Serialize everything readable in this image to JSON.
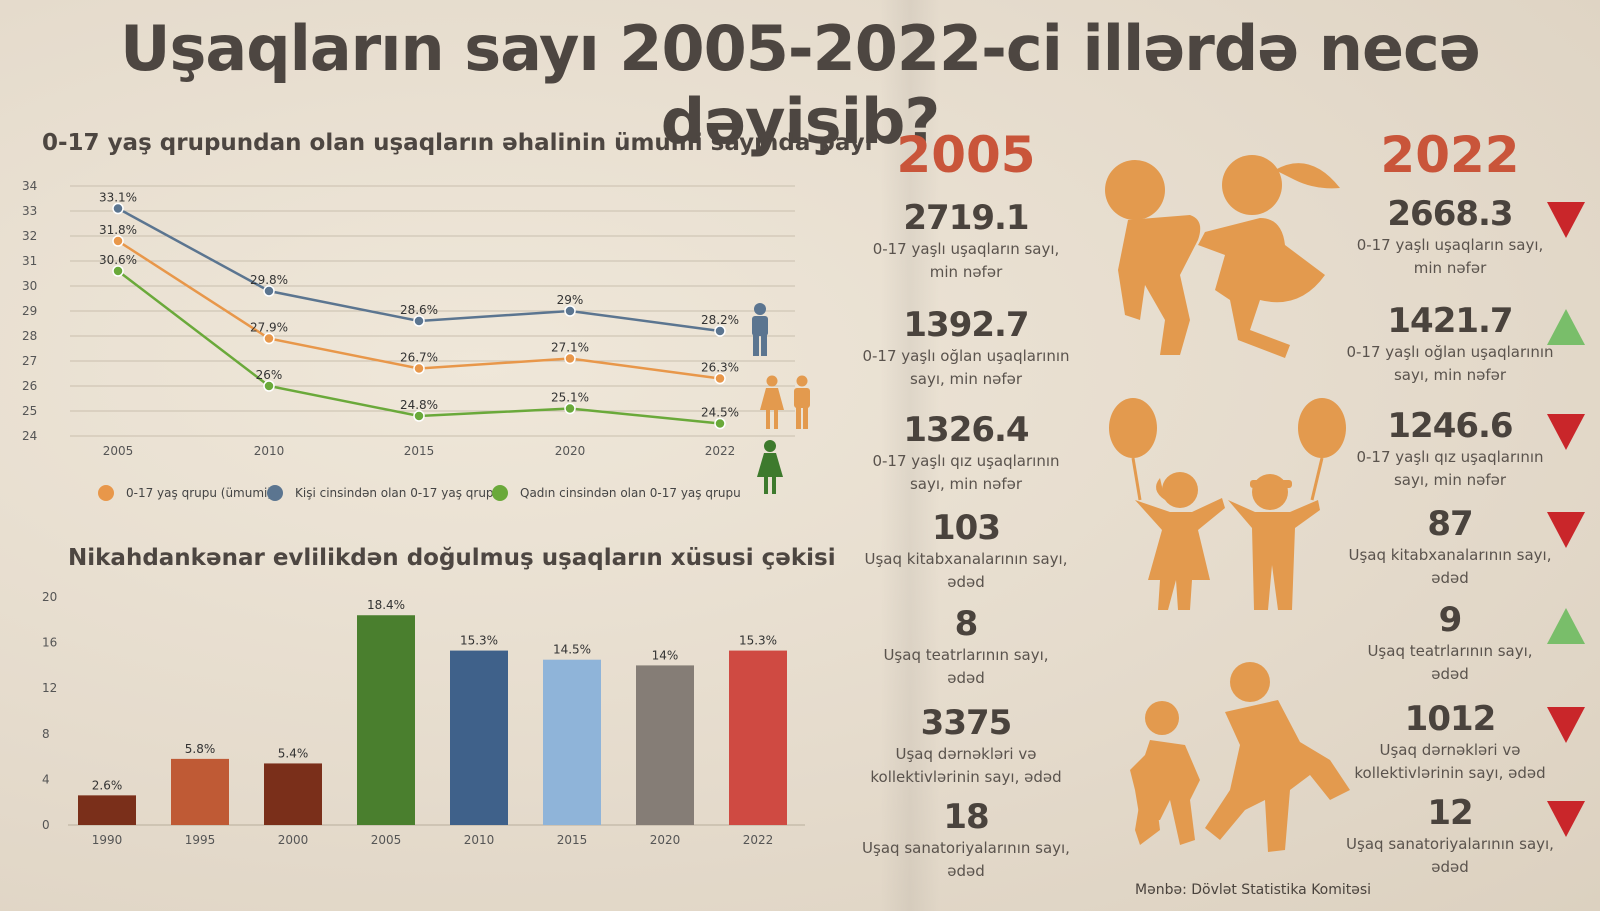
{
  "title": "Uşaqların sayı 2005-2022-ci illərdə necə dəyişib?",
  "colors": {
    "orange": "#e8974a",
    "blue_gray": "#5b7590",
    "green": "#6aa93a",
    "red_year": "#c9553a",
    "arrow_down": "#c9262a",
    "arrow_up": "#79be6a",
    "icon_orange": "#e39a4e"
  },
  "chart_data": [
    {
      "type": "line",
      "title": "0-17 yaş qrupundan olan uşaqların əhalinin ümumi sayında payı",
      "x": [
        "2005",
        "2010",
        "2015",
        "2020",
        "2022"
      ],
      "ylim": [
        24,
        34
      ],
      "yticks": [
        "24",
        "25",
        "26",
        "27",
        "28",
        "29",
        "30",
        "31",
        "32",
        "33",
        "34"
      ],
      "grid": true,
      "legend_position": "bottom",
      "series": [
        {
          "name": "0-17 yaş qrupu (ümumi)",
          "values": [
            31.8,
            27.9,
            26.7,
            27.1,
            26.3
          ],
          "labels": [
            "31.8%",
            "27.9%",
            "26.7%",
            "27.1%",
            "26.3%"
          ],
          "color": "#e8974a"
        },
        {
          "name": "Kişi cinsindən olan 0-17 yaş qrupu",
          "values": [
            33.1,
            29.8,
            28.6,
            29,
            28.2
          ],
          "labels": [
            "33.1%",
            "29.8%",
            "28.6%",
            "29%",
            "28.2%"
          ],
          "color": "#5b7590"
        },
        {
          "name": "Qadın cinsindən olan 0-17 yaş qrupu",
          "values": [
            30.6,
            26,
            24.8,
            25.1,
            24.5
          ],
          "labels": [
            "30.6%",
            "26%",
            "24.8%",
            "25.1%",
            "24.5%"
          ],
          "color": "#6aa93a"
        }
      ]
    },
    {
      "type": "bar",
      "title": "Nikahdankənar evlilikdən doğulmuş uşaqların xüsusi çəkisi",
      "categories": [
        "1990",
        "1995",
        "2000",
        "2005",
        "2010",
        "2015",
        "2020",
        "2022"
      ],
      "values": [
        2.6,
        5.8,
        5.4,
        18.4,
        15.3,
        14.5,
        14,
        15.3
      ],
      "labels": [
        "2.6%",
        "5.8%",
        "5.4%",
        "18.4%",
        "15.3%",
        "14.5%",
        "14%",
        "15.3%"
      ],
      "colors": [
        "#7a2f1a",
        "#bf5a35",
        "#7a2f1a",
        "#4a7f2e",
        "#3f618a",
        "#8fb4d9",
        "#857d76",
        "#cf4a42"
      ],
      "ylim": [
        0,
        20
      ],
      "yticks": [
        "0",
        "4",
        "8",
        "12",
        "16",
        "20"
      ],
      "grid": false
    }
  ],
  "stats": {
    "year_left": "2005",
    "year_right": "2022",
    "rows": [
      {
        "v2005": "2719.1",
        "v2022": "2668.3",
        "desc": [
          "0-17 yaşlı uşaqların sayı,",
          "min nəfər"
        ],
        "trend": "down"
      },
      {
        "v2005": "1392.7",
        "v2022": "1421.7",
        "desc": [
          "0-17 yaşlı oğlan uşaqlarının",
          "sayı, min nəfər"
        ],
        "trend": "up"
      },
      {
        "v2005": "1326.4",
        "v2022": "1246.6",
        "desc": [
          "0-17 yaşlı qız uşaqlarının",
          "sayı, min nəfər"
        ],
        "trend": "down"
      },
      {
        "v2005": "103",
        "v2022": "87",
        "desc": [
          "Uşaq kitabxanalarının sayı,",
          "ədəd"
        ],
        "trend": "down"
      },
      {
        "v2005": "8",
        "v2022": "9",
        "desc": [
          "Uşaq teatrlarının sayı,",
          "ədəd"
        ],
        "trend": "up"
      },
      {
        "v2005": "3375",
        "v2022": "1012",
        "desc": [
          "Uşaq dərnəkləri və",
          "kollektivlərinin sayı, ədəd"
        ],
        "trend": "down"
      },
      {
        "v2005": "18",
        "v2022": "12",
        "desc": [
          "Uşaq sanatoriyalarının sayı,",
          "ədəd"
        ],
        "trend": "down"
      }
    ]
  },
  "icons": [
    "male-person-icon",
    "female-person-icon",
    "children-playing-icon",
    "children-balloons-icon",
    "children-running-icon"
  ],
  "source": "Mənbə: Dövlət Statistika Komitəsi"
}
